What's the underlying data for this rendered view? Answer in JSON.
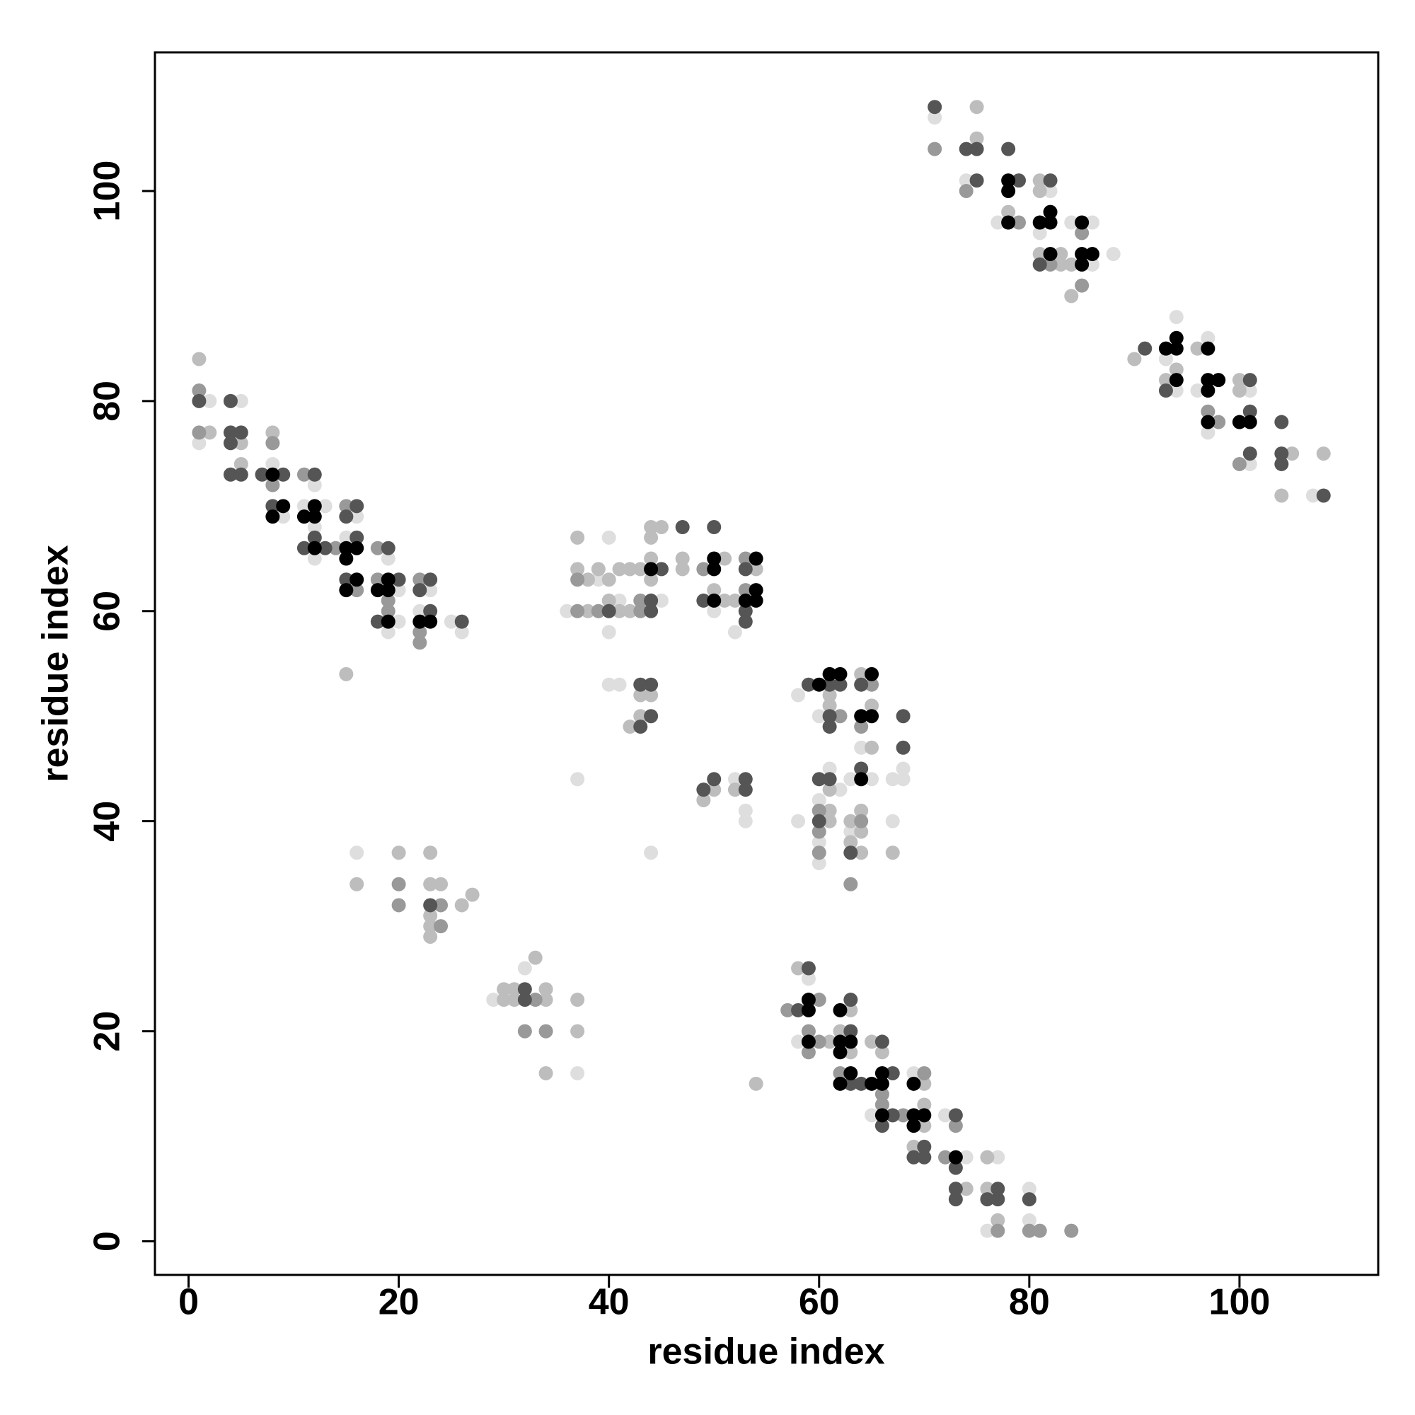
{
  "chart_data": {
    "type": "scatter",
    "x_label": "residue index",
    "y_label": "residue index",
    "xlim": [
      -3.2,
      113.2
    ],
    "ylim": [
      -3.2,
      113.2
    ],
    "xticks": [
      0,
      20,
      40,
      60,
      80,
      100
    ],
    "yticks": [
      0,
      20,
      40,
      60,
      80,
      100
    ],
    "series": [
      {
        "color": "#dedede",
        "x": [
          2,
          5,
          1,
          8,
          9,
          12,
          11,
          13,
          12,
          12,
          16,
          15,
          19,
          20,
          20,
          19,
          23,
          22,
          25,
          26,
          16,
          29,
          32,
          37,
          39,
          40,
          45,
          41,
          36,
          40,
          50,
          52,
          40,
          41,
          37,
          44,
          52,
          53,
          53,
          58,
          60,
          64,
          63,
          65,
          61,
          60,
          60,
          60,
          58,
          63,
          62,
          67,
          68,
          68,
          67,
          59,
          58,
          65,
          69,
          72,
          74,
          77,
          76,
          80,
          80,
          71,
          74,
          77,
          82,
          81,
          84,
          86,
          86,
          88,
          94,
          93,
          94,
          97,
          96,
          97,
          101,
          101,
          107
        ],
        "y": [
          80,
          80,
          76,
          74,
          69,
          72,
          70,
          70,
          68,
          65,
          69,
          67,
          65,
          62,
          59,
          58,
          62,
          60,
          59,
          58,
          37,
          23,
          26,
          16,
          63,
          67,
          61,
          61,
          60,
          58,
          60,
          58,
          53,
          53,
          44,
          37,
          44,
          41,
          40,
          52,
          50,
          47,
          44,
          44,
          45,
          42,
          38,
          36,
          40,
          39,
          43,
          44,
          44,
          45,
          40,
          25,
          19,
          12,
          16,
          12,
          8,
          8,
          1,
          5,
          2,
          107,
          101,
          97,
          100,
          96,
          97,
          97,
          93,
          94,
          88,
          84,
          81,
          86,
          81,
          77,
          81,
          74,
          71
        ]
      },
      {
        "color": "#bdbdbd",
        "x": [
          1,
          2,
          8,
          5,
          5,
          15,
          16,
          23,
          20,
          23,
          24,
          23,
          23,
          23,
          26,
          27,
          30,
          31,
          30,
          31,
          34,
          34,
          33,
          37,
          37,
          34,
          37,
          37,
          38,
          40,
          39,
          41,
          42,
          43,
          44,
          45,
          44,
          47,
          47,
          44,
          44,
          40,
          38,
          41,
          42,
          51,
          51,
          52,
          50,
          54,
          43,
          44,
          42,
          43,
          49,
          50,
          52,
          64,
          61,
          61,
          65,
          65,
          61,
          61,
          61,
          63,
          64,
          64,
          63,
          64,
          67,
          58,
          63,
          62,
          63,
          61,
          65,
          66,
          70,
          70,
          70,
          69,
          74,
          76,
          76,
          77,
          54,
          75,
          75,
          78,
          81,
          81,
          81,
          83,
          83,
          84,
          84,
          90,
          94,
          93,
          96,
          100,
          100,
          105,
          104,
          108
        ],
        "y": [
          84,
          77,
          77,
          76,
          74,
          54,
          34,
          37,
          37,
          34,
          34,
          31,
          30,
          29,
          32,
          33,
          24,
          24,
          23,
          23,
          23,
          24,
          27,
          23,
          20,
          16,
          67,
          64,
          63,
          63,
          64,
          64,
          64,
          64,
          68,
          68,
          67,
          65,
          64,
          65,
          63,
          61,
          60,
          60,
          60,
          65,
          61,
          61,
          62,
          64,
          52,
          52,
          49,
          50,
          42,
          43,
          43,
          54,
          52,
          51,
          51,
          47,
          43,
          41,
          40,
          40,
          41,
          39,
          38,
          37,
          37,
          26,
          22,
          20,
          18,
          19,
          19,
          18,
          15,
          13,
          11,
          9,
          5,
          8,
          5,
          2,
          15,
          108,
          105,
          98,
          101,
          100,
          94,
          94,
          93,
          93,
          90,
          84,
          83,
          82,
          85,
          82,
          81,
          75,
          71,
          75
        ]
      },
      {
        "color": "#999999",
        "x": [
          1,
          1,
          8,
          8,
          11,
          15,
          14,
          16,
          18,
          18,
          19,
          19,
          22,
          22,
          22,
          20,
          20,
          24,
          24,
          33,
          32,
          34,
          37,
          37,
          39,
          43,
          49,
          53,
          53,
          43,
          64,
          65,
          62,
          60,
          60,
          60,
          64,
          63,
          57,
          60,
          59,
          60,
          59,
          62,
          66,
          66,
          70,
          68,
          73,
          72,
          77,
          80,
          81,
          84,
          71,
          74,
          79,
          82,
          85,
          85,
          97,
          98,
          100
        ],
        "y": [
          81,
          77,
          76,
          72,
          73,
          70,
          66,
          62,
          66,
          63,
          61,
          60,
          63,
          58,
          57,
          34,
          32,
          32,
          30,
          23,
          20,
          20,
          63,
          60,
          60,
          60,
          64,
          65,
          62,
          61,
          49,
          53,
          50,
          41,
          39,
          37,
          40,
          34,
          22,
          23,
          20,
          19,
          18,
          16,
          14,
          13,
          16,
          12,
          11,
          8,
          1,
          1,
          1,
          1,
          104,
          100,
          97,
          93,
          96,
          91,
          79,
          78,
          74
        ]
      },
      {
        "color": "#555555",
        "x": [
          1,
          4,
          4,
          5,
          4,
          4,
          5,
          7,
          9,
          8,
          12,
          12,
          11,
          13,
          16,
          15,
          16,
          15,
          19,
          20,
          18,
          23,
          22,
          23,
          26,
          23,
          32,
          32,
          45,
          47,
          44,
          40,
          44,
          50,
          49,
          53,
          53,
          53,
          43,
          44,
          43,
          44,
          49,
          50,
          53,
          53,
          59,
          61,
          62,
          64,
          61,
          61,
          68,
          68,
          64,
          60,
          61,
          60,
          63,
          59,
          58,
          63,
          63,
          63,
          67,
          64,
          67,
          66,
          70,
          69,
          70,
          73,
          73,
          73,
          73,
          77,
          76,
          77,
          80,
          66,
          71,
          74,
          75,
          78,
          75,
          79,
          82,
          81,
          91,
          93,
          101,
          101,
          101,
          104,
          104,
          104,
          108
        ],
        "y": [
          80,
          80,
          77,
          77,
          76,
          73,
          73,
          73,
          73,
          70,
          73,
          67,
          66,
          66,
          70,
          69,
          67,
          63,
          66,
          63,
          59,
          63,
          62,
          60,
          59,
          32,
          24,
          23,
          64,
          68,
          61,
          60,
          60,
          68,
          61,
          64,
          60,
          59,
          53,
          53,
          49,
          50,
          43,
          44,
          44,
          43,
          53,
          53,
          53,
          53,
          50,
          49,
          50,
          47,
          45,
          44,
          44,
          40,
          37,
          26,
          22,
          23,
          20,
          15,
          16,
          15,
          12,
          11,
          9,
          8,
          8,
          12,
          7,
          5,
          4,
          5,
          4,
          4,
          4,
          19,
          108,
          104,
          104,
          104,
          101,
          101,
          101,
          93,
          85,
          81,
          82,
          79,
          75,
          78,
          75,
          74,
          71
        ]
      },
      {
        "color": "#000000",
        "x": [
          8,
          9,
          8,
          12,
          11,
          12,
          12,
          15,
          16,
          15,
          16,
          15,
          19,
          18,
          19,
          19,
          22,
          23,
          44,
          50,
          50,
          50,
          54,
          54,
          53,
          54,
          60,
          61,
          62,
          65,
          64,
          65,
          64,
          59,
          59,
          59,
          62,
          62,
          63,
          62,
          63,
          62,
          65,
          66,
          66,
          66,
          69,
          69,
          70,
          69,
          73,
          78,
          78,
          78,
          81,
          82,
          82,
          82,
          85,
          85,
          86,
          85,
          93,
          94,
          94,
          94,
          97,
          97,
          98,
          97,
          97,
          100,
          101
        ],
        "y": [
          73,
          70,
          69,
          70,
          69,
          69,
          66,
          66,
          66,
          65,
          63,
          62,
          63,
          62,
          62,
          59,
          59,
          59,
          64,
          65,
          64,
          61,
          65,
          62,
          61,
          61,
          53,
          54,
          54,
          54,
          50,
          50,
          44,
          22,
          23,
          19,
          22,
          19,
          19,
          18,
          16,
          15,
          15,
          15,
          16,
          12,
          15,
          12,
          12,
          11,
          8,
          101,
          100,
          97,
          97,
          97,
          98,
          94,
          97,
          94,
          94,
          93,
          85,
          85,
          86,
          82,
          85,
          82,
          82,
          81,
          78,
          78,
          78
        ]
      }
    ]
  }
}
